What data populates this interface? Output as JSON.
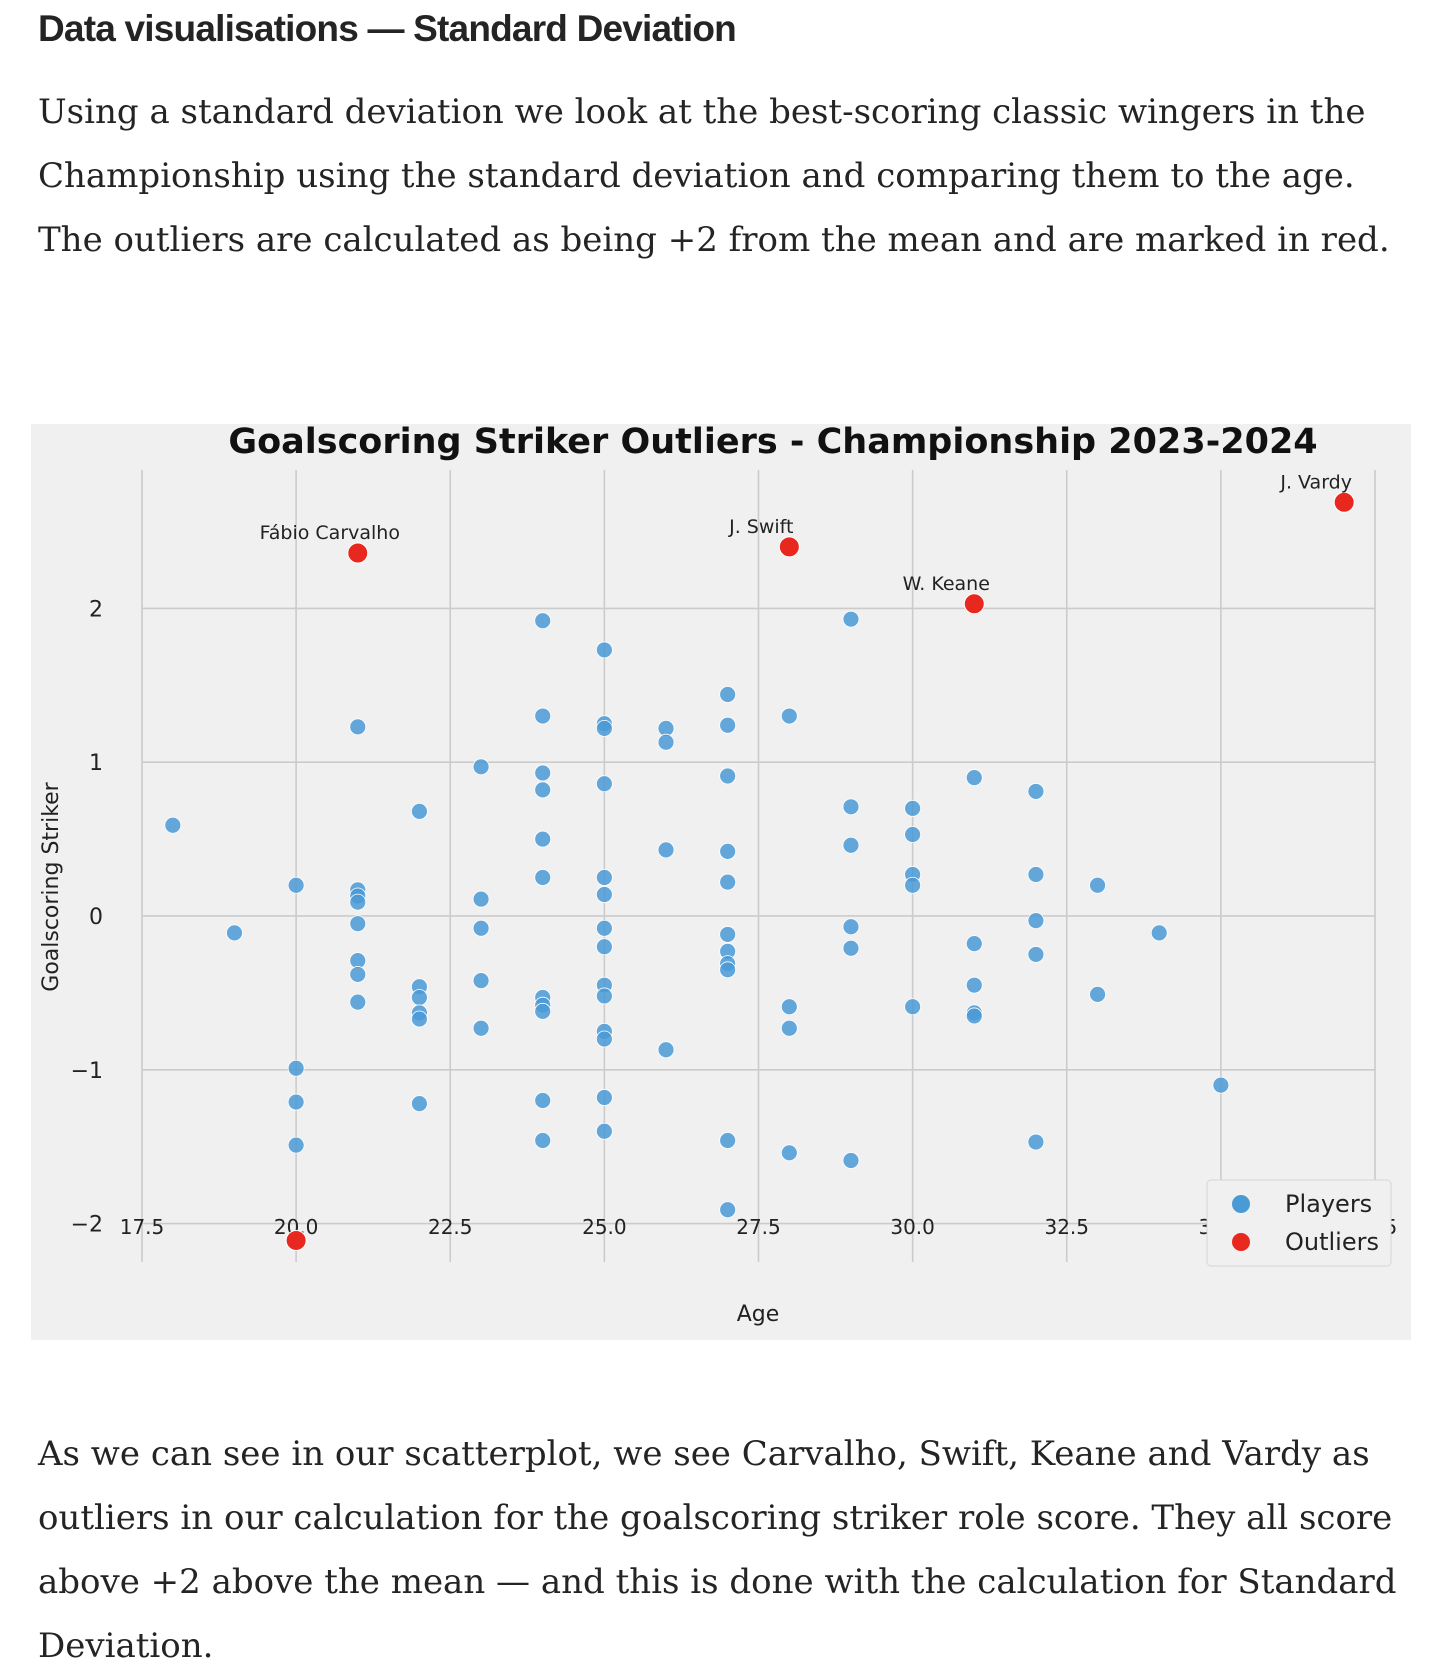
{
  "article": {
    "heading": "Data visualisations — Standard Deviation",
    "intro": "Using a standard deviation we look at the best-scoring classic wingers in the Championship using the standard deviation and comparing them to the age. The outliers are calculated as being +2 from the mean and are marked in red.",
    "conclusion": "As we can see in our scatterplot, we see Carvalho, Swift, Keane and Vardy as outliers in our calculation for the goalscoring striker role score. They all score above +2 above the mean — and this is done with the calculation for Standard Deviation."
  },
  "chart_data": {
    "type": "scatter",
    "title": "Goalscoring Striker Outliers - Championship 2023-2024",
    "xlabel": "Age",
    "ylabel": "Goalscoring Striker",
    "xlim": [
      17.5,
      37.5
    ],
    "ylim": [
      -2.25,
      2.9
    ],
    "xticks": [
      17.5,
      20.0,
      22.5,
      25.0,
      27.5,
      30.0,
      32.5,
      35.0,
      37.5
    ],
    "xtick_labels": [
      "17.5",
      "20.0",
      "22.5",
      "25.0",
      "27.5",
      "30.0",
      "32.5",
      "35.0",
      "37.5"
    ],
    "yticks": [
      -2,
      -1,
      0,
      1,
      2
    ],
    "ytick_labels": [
      "−2",
      "−1",
      "0",
      "1",
      "2"
    ],
    "grid": true,
    "legend_position": "bottom-right",
    "colors": {
      "background": "#f0f0f0",
      "grid": "#cbcbcb",
      "players": "#4a9ad6",
      "outliers": "#e8281f"
    },
    "series": [
      {
        "name": "Players",
        "points": [
          [
            18,
            0.59
          ],
          [
            19,
            -0.11
          ],
          [
            20,
            0.2
          ],
          [
            20,
            -0.99
          ],
          [
            20,
            -1.21
          ],
          [
            20,
            -1.49
          ],
          [
            21,
            1.23
          ],
          [
            21,
            0.17
          ],
          [
            21,
            0.13
          ],
          [
            21,
            0.09
          ],
          [
            21,
            -0.05
          ],
          [
            21,
            -0.29
          ],
          [
            21,
            -0.38
          ],
          [
            21,
            -0.56
          ],
          [
            22,
            0.68
          ],
          [
            22,
            -0.46
          ],
          [
            22,
            -0.53
          ],
          [
            22,
            -0.63
          ],
          [
            22,
            -0.67
          ],
          [
            22,
            -1.22
          ],
          [
            23,
            0.97
          ],
          [
            23,
            0.11
          ],
          [
            23,
            -0.08
          ],
          [
            23,
            -0.42
          ],
          [
            23,
            -0.73
          ],
          [
            24,
            1.92
          ],
          [
            24,
            1.3
          ],
          [
            24,
            0.93
          ],
          [
            24,
            0.82
          ],
          [
            24,
            0.5
          ],
          [
            24,
            0.25
          ],
          [
            24,
            -0.53
          ],
          [
            24,
            -0.58
          ],
          [
            24,
            -0.62
          ],
          [
            24,
            -1.2
          ],
          [
            24,
            -1.46
          ],
          [
            25,
            1.73
          ],
          [
            25,
            1.25
          ],
          [
            25,
            1.22
          ],
          [
            25,
            0.86
          ],
          [
            25,
            0.25
          ],
          [
            25,
            0.14
          ],
          [
            25,
            -0.08
          ],
          [
            25,
            -0.2
          ],
          [
            25,
            -0.45
          ],
          [
            25,
            -0.52
          ],
          [
            25,
            -0.75
          ],
          [
            25,
            -0.8
          ],
          [
            25,
            -1.18
          ],
          [
            25,
            -1.4
          ],
          [
            26,
            1.22
          ],
          [
            26,
            1.13
          ],
          [
            26,
            0.43
          ],
          [
            26,
            -0.87
          ],
          [
            27,
            1.44
          ],
          [
            27,
            1.24
          ],
          [
            27,
            0.91
          ],
          [
            27,
            0.42
          ],
          [
            27,
            0.22
          ],
          [
            27,
            -0.12
          ],
          [
            27,
            -0.23
          ],
          [
            27,
            -0.31
          ],
          [
            27,
            -0.35
          ],
          [
            27,
            -1.46
          ],
          [
            27,
            -1.91
          ],
          [
            28,
            1.3
          ],
          [
            28,
            -0.59
          ],
          [
            28,
            -0.73
          ],
          [
            28,
            -1.54
          ],
          [
            29,
            1.93
          ],
          [
            29,
            0.71
          ],
          [
            29,
            0.46
          ],
          [
            29,
            -0.07
          ],
          [
            29,
            -0.21
          ],
          [
            29,
            -1.59
          ],
          [
            30,
            0.7
          ],
          [
            30,
            0.53
          ],
          [
            30,
            0.27
          ],
          [
            30,
            0.2
          ],
          [
            30,
            -0.59
          ],
          [
            31,
            0.9
          ],
          [
            31,
            -0.18
          ],
          [
            31,
            -0.45
          ],
          [
            31,
            -0.63
          ],
          [
            31,
            -0.65
          ],
          [
            32,
            0.81
          ],
          [
            32,
            0.27
          ],
          [
            32,
            -0.03
          ],
          [
            32,
            -0.25
          ],
          [
            32,
            -1.47
          ],
          [
            33,
            0.2
          ],
          [
            33,
            -0.51
          ],
          [
            34,
            -0.11
          ],
          [
            35,
            -1.1
          ]
        ]
      },
      {
        "name": "Outliers",
        "points": [
          [
            21,
            2.36,
            "Fábio Carvalho"
          ],
          [
            28,
            2.4,
            "J. Swift"
          ],
          [
            31,
            2.03,
            "W. Keane"
          ],
          [
            37,
            2.69,
            "J. Vardy"
          ],
          [
            20,
            -2.11,
            ""
          ]
        ]
      }
    ]
  }
}
